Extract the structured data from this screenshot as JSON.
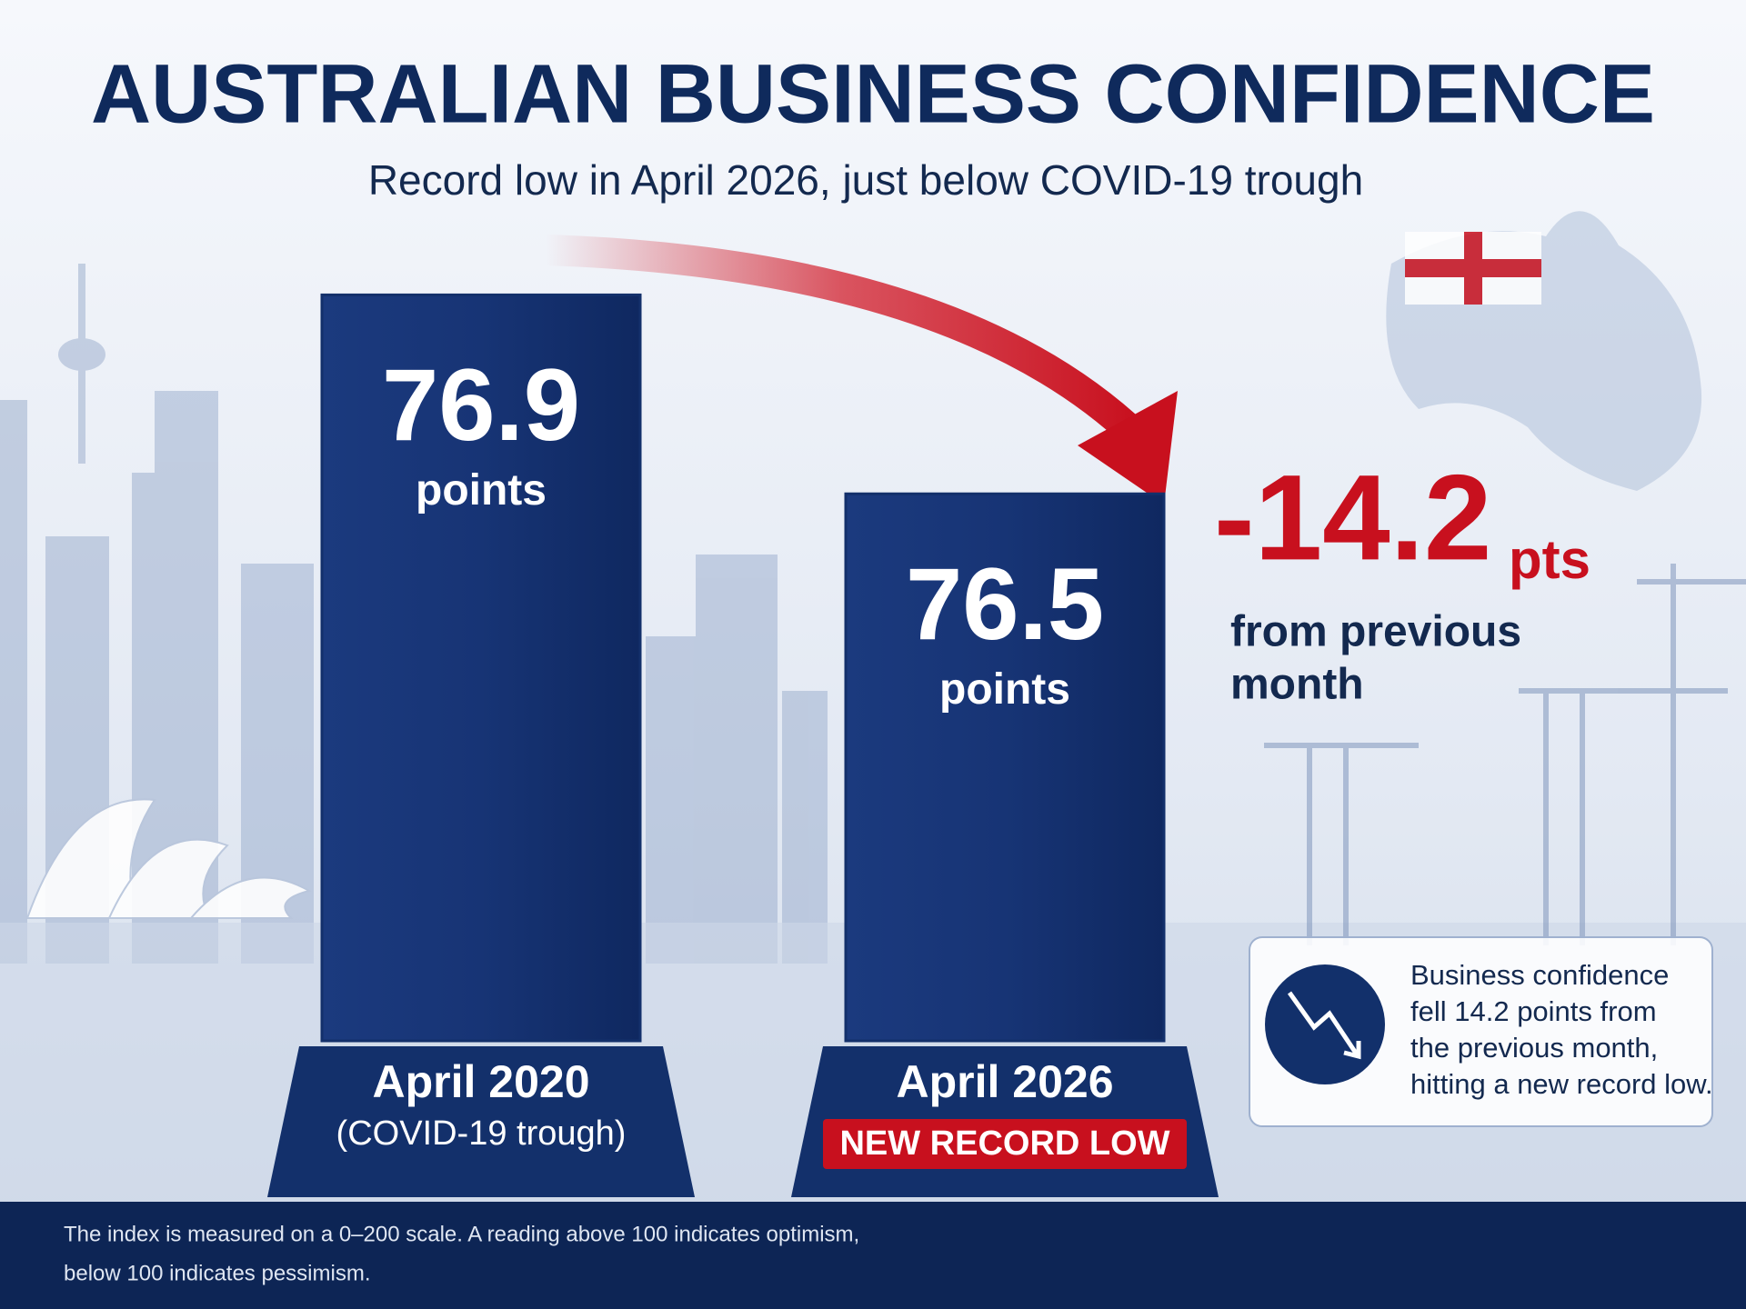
{
  "chart_data": {
    "type": "bar",
    "title": "AUSTRALIAN BUSINESS CONFIDENCE",
    "subtitle": "Record low in April 2026, just below COVID-19 trough",
    "categories": [
      "April 2020",
      "April 2026"
    ],
    "category_notes": [
      "(COVID-19 trough)",
      "NEW RECORD LOW"
    ],
    "values": [
      76.9,
      76.5
    ],
    "value_unit": "points",
    "color": "#13306b",
    "ylim": [
      75.4,
      77.1
    ],
    "change": {
      "value": -14.2,
      "unit": "pts",
      "label": [
        "from previous",
        "month"
      ],
      "color": "#c8101e"
    },
    "callout": [
      "Business confidence",
      "fell 14.2 points from",
      "the previous month,",
      "hitting a new record low."
    ],
    "footnote": [
      "The index is measured on a 0–200 scale. A reading above 100 indicates optimism,",
      "below 100 indicates pessimism."
    ]
  }
}
